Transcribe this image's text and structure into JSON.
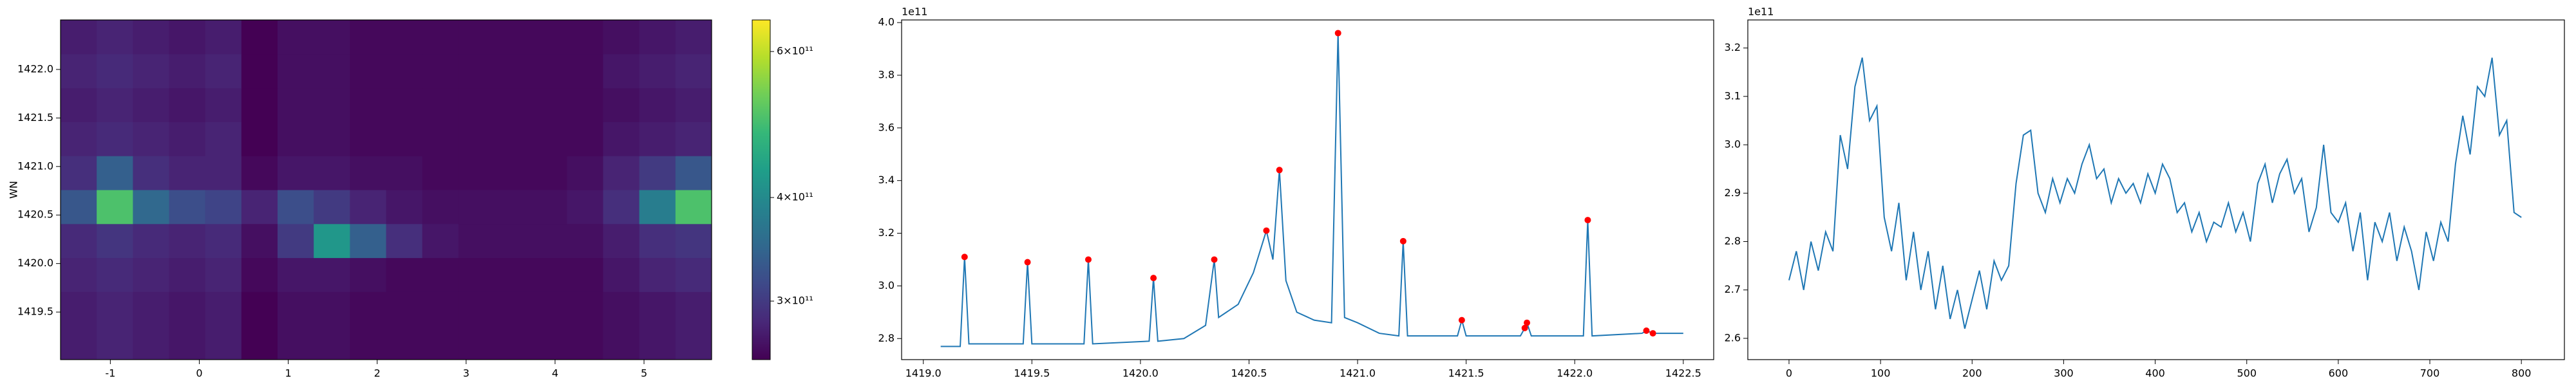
{
  "chart_data": [
    {
      "type": "heatmap",
      "ylabel": "WN",
      "x": [
        -1.357,
        -0.95,
        -0.543,
        -0.137,
        0.27,
        0.677,
        1.083,
        1.49,
        1.897,
        2.303,
        2.71,
        3.117,
        3.523,
        3.93,
        4.337,
        4.743,
        5.15,
        5.557
      ],
      "y": [
        1419.185,
        1419.535,
        1419.885,
        1420.235,
        1420.585,
        1420.935,
        1421.285,
        1421.635,
        1421.985,
        1422.335
      ],
      "values": [
        [
          275000000000.0,
          280000000000.0,
          275000000000.0,
          270000000000.0,
          275000000000.0,
          255000000000.0,
          265000000000.0,
          265000000000.0,
          260000000000.0,
          260000000000.0,
          260000000000.0,
          260000000000.0,
          260000000000.0,
          260000000000.0,
          260000000000.0,
          265000000000.0,
          270000000000.0,
          275000000000.0
        ],
        [
          275000000000.0,
          280000000000.0,
          275000000000.0,
          270000000000.0,
          275000000000.0,
          255000000000.0,
          265000000000.0,
          265000000000.0,
          260000000000.0,
          260000000000.0,
          260000000000.0,
          260000000000.0,
          260000000000.0,
          260000000000.0,
          260000000000.0,
          265000000000.0,
          270000000000.0,
          275000000000.0
        ],
        [
          280000000000.0,
          285000000000.0,
          280000000000.0,
          275000000000.0,
          280000000000.0,
          260000000000.0,
          270000000000.0,
          270000000000.0,
          265000000000.0,
          260000000000.0,
          260000000000.0,
          260000000000.0,
          260000000000.0,
          260000000000.0,
          260000000000.0,
          270000000000.0,
          280000000000.0,
          285000000000.0
        ],
        [
          285000000000.0,
          295000000000.0,
          285000000000.0,
          280000000000.0,
          285000000000.0,
          265000000000.0,
          300000000000.0,
          420000000000.0,
          340000000000.0,
          290000000000.0,
          270000000000.0,
          265000000000.0,
          265000000000.0,
          265000000000.0,
          265000000000.0,
          275000000000.0,
          290000000000.0,
          295000000000.0
        ],
        [
          330000000000.0,
          500000000000.0,
          350000000000.0,
          320000000000.0,
          310000000000.0,
          280000000000.0,
          320000000000.0,
          300000000000.0,
          280000000000.0,
          270000000000.0,
          265000000000.0,
          265000000000.0,
          265000000000.0,
          265000000000.0,
          270000000000.0,
          290000000000.0,
          380000000000.0,
          500000000000.0
        ],
        [
          290000000000.0,
          340000000000.0,
          290000000000.0,
          280000000000.0,
          280000000000.0,
          260000000000.0,
          270000000000.0,
          270000000000.0,
          265000000000.0,
          265000000000.0,
          260000000000.0,
          260000000000.0,
          260000000000.0,
          260000000000.0,
          265000000000.0,
          280000000000.0,
          300000000000.0,
          330000000000.0
        ],
        [
          280000000000.0,
          285000000000.0,
          280000000000.0,
          275000000000.0,
          280000000000.0,
          255000000000.0,
          265000000000.0,
          265000000000.0,
          260000000000.0,
          260000000000.0,
          260000000000.0,
          260000000000.0,
          260000000000.0,
          260000000000.0,
          260000000000.0,
          270000000000.0,
          275000000000.0,
          280000000000.0
        ],
        [
          275000000000.0,
          280000000000.0,
          275000000000.0,
          270000000000.0,
          275000000000.0,
          255000000000.0,
          265000000000.0,
          265000000000.0,
          260000000000.0,
          260000000000.0,
          260000000000.0,
          260000000000.0,
          260000000000.0,
          260000000000.0,
          260000000000.0,
          265000000000.0,
          270000000000.0,
          275000000000.0
        ],
        [
          280000000000.0,
          285000000000.0,
          280000000000.0,
          275000000000.0,
          280000000000.0,
          255000000000.0,
          265000000000.0,
          265000000000.0,
          260000000000.0,
          260000000000.0,
          260000000000.0,
          260000000000.0,
          260000000000.0,
          260000000000.0,
          260000000000.0,
          270000000000.0,
          275000000000.0,
          280000000000.0
        ],
        [
          275000000000.0,
          280000000000.0,
          275000000000.0,
          270000000000.0,
          275000000000.0,
          255000000000.0,
          265000000000.0,
          265000000000.0,
          260000000000.0,
          260000000000.0,
          260000000000.0,
          260000000000.0,
          260000000000.0,
          260000000000.0,
          260000000000.0,
          265000000000.0,
          270000000000.0,
          275000000000.0
        ]
      ],
      "xlim": [
        -1.56,
        5.76
      ],
      "xticks": [
        -1,
        0,
        1,
        2,
        3,
        4,
        5
      ],
      "ylim": [
        1419.01,
        1422.51
      ],
      "yticks": [
        1419.5,
        {
          "value": 1420,
          "label": "1420.0"
        },
        1420.5,
        {
          "value": 1421,
          "label": "1421.0"
        },
        1421.5,
        {
          "value": 1422,
          "label": "1422.0"
        }
      ],
      "colormap": "viridis",
      "color_scale": "log",
      "clim": [
        255000000000.0,
        655000000000.0
      ],
      "cticks": [
        {
          "value": 300000000000.0,
          "label": "3×10¹¹"
        },
        {
          "value": 400000000000.0,
          "label": "4×10¹¹"
        },
        {
          "value": 600000000000.0,
          "label": "6×10¹¹"
        }
      ]
    },
    {
      "type": "line",
      "y_offset_label": "1e11",
      "series": [
        {
          "color": "#1f77b4",
          "x": [
            1419.08,
            1419.17,
            1419.19,
            1419.21,
            1419.46,
            1419.48,
            1419.5,
            1419.74,
            1419.76,
            1419.78,
            1420.04,
            1420.06,
            1420.08,
            1420.2,
            1420.3,
            1420.34,
            1420.36,
            1420.45,
            1420.52,
            1420.58,
            1420.61,
            1420.64,
            1420.67,
            1420.72,
            1420.8,
            1420.88,
            1420.91,
            1420.94,
            1421.0,
            1421.1,
            1421.19,
            1421.21,
            1421.23,
            1421.46,
            1421.48,
            1421.5,
            1421.75,
            1421.77,
            1421.78,
            1421.8,
            1422.04,
            1422.06,
            1422.08,
            1422.31,
            1422.33,
            1422.36,
            1422.5
          ],
          "values": [
            2.77,
            2.77,
            3.11,
            2.78,
            2.78,
            3.09,
            2.78,
            2.78,
            3.1,
            2.78,
            2.79,
            3.03,
            2.79,
            2.8,
            2.85,
            3.1,
            2.88,
            2.93,
            3.05,
            3.21,
            3.1,
            3.44,
            3.02,
            2.9,
            2.87,
            2.86,
            3.96,
            2.88,
            2.86,
            2.82,
            2.81,
            3.17,
            2.81,
            2.81,
            2.87,
            2.81,
            2.81,
            2.84,
            2.86,
            2.81,
            2.81,
            3.25,
            2.81,
            2.82,
            2.83,
            2.82,
            2.82
          ]
        },
        {
          "color": "red",
          "marker": "circle",
          "x": [
            1419.19,
            1419.48,
            1419.76,
            1420.06,
            1420.34,
            1420.58,
            1420.64,
            1420.91,
            1421.21,
            1421.48,
            1421.77,
            1421.78,
            1422.06,
            1422.33,
            1422.36
          ],
          "values": [
            3.11,
            3.09,
            3.1,
            3.03,
            3.1,
            3.21,
            3.44,
            3.96,
            3.17,
            2.87,
            2.84,
            2.86,
            3.25,
            2.83,
            2.82
          ]
        }
      ],
      "xlim": [
        1418.9,
        1422.64
      ],
      "xticks": [
        {
          "value": 1419,
          "label": "1419.0"
        },
        1419.5,
        {
          "value": 1420,
          "label": "1420.0"
        },
        1420.5,
        {
          "value": 1421,
          "label": "1421.0"
        },
        1421.5,
        {
          "value": 1422,
          "label": "1422.0"
        },
        1422.5
      ],
      "ylim": [
        2.72,
        4.01
      ],
      "yticks": [
        2.8,
        {
          "value": 3,
          "label": "3.0"
        },
        3.2,
        3.4,
        3.6,
        3.8,
        {
          "value": 4,
          "label": "4.0"
        }
      ]
    },
    {
      "type": "line",
      "y_offset_label": "1e11",
      "series": [
        {
          "color": "#1f77b4",
          "x": [
            0,
            8,
            16,
            24,
            32,
            40,
            48,
            56,
            64,
            72,
            80,
            88,
            96,
            104,
            112,
            120,
            128,
            136,
            144,
            152,
            160,
            168,
            176,
            184,
            192,
            200,
            208,
            216,
            224,
            232,
            240,
            248,
            256,
            264,
            272,
            280,
            288,
            296,
            304,
            312,
            320,
            328,
            336,
            344,
            352,
            360,
            368,
            376,
            384,
            392,
            400,
            408,
            416,
            424,
            432,
            440,
            448,
            456,
            464,
            472,
            480,
            488,
            496,
            504,
            512,
            520,
            528,
            536,
            544,
            552,
            560,
            568,
            576,
            584,
            592,
            600,
            608,
            616,
            624,
            632,
            640,
            648,
            656,
            664,
            672,
            680,
            688,
            696,
            704,
            712,
            720,
            728,
            736,
            744,
            752,
            760,
            768,
            776,
            784,
            792,
            800
          ],
          "values": [
            2.72,
            2.78,
            2.7,
            2.8,
            2.74,
            2.82,
            2.78,
            3.02,
            2.95,
            3.12,
            3.18,
            3.05,
            3.08,
            2.85,
            2.78,
            2.88,
            2.72,
            2.82,
            2.7,
            2.78,
            2.66,
            2.75,
            2.64,
            2.7,
            2.62,
            2.68,
            2.74,
            2.66,
            2.76,
            2.72,
            2.75,
            2.92,
            3.02,
            3.03,
            2.9,
            2.86,
            2.93,
            2.88,
            2.93,
            2.9,
            2.96,
            3.0,
            2.93,
            2.95,
            2.88,
            2.93,
            2.9,
            2.92,
            2.88,
            2.94,
            2.9,
            2.96,
            2.93,
            2.86,
            2.88,
            2.82,
            2.86,
            2.8,
            2.84,
            2.83,
            2.88,
            2.82,
            2.86,
            2.8,
            2.92,
            2.96,
            2.88,
            2.94,
            2.97,
            2.9,
            2.93,
            2.82,
            2.87,
            3.0,
            2.86,
            2.84,
            2.88,
            2.78,
            2.86,
            2.72,
            2.84,
            2.8,
            2.86,
            2.76,
            2.83,
            2.78,
            2.7,
            2.82,
            2.76,
            2.84,
            2.8,
            2.96,
            3.06,
            2.98,
            3.12,
            3.1,
            3.18,
            3.02,
            3.05,
            2.86,
            2.85
          ]
        }
      ],
      "xlim": [
        -45,
        847
      ],
      "xticks": [
        0,
        100,
        200,
        300,
        400,
        500,
        600,
        700,
        800
      ],
      "ylim": [
        2.556,
        3.258
      ],
      "yticks": [
        2.6,
        2.7,
        2.8,
        2.9,
        {
          "value": 3,
          "label": "3.0"
        },
        3.1,
        3.2
      ]
    }
  ]
}
